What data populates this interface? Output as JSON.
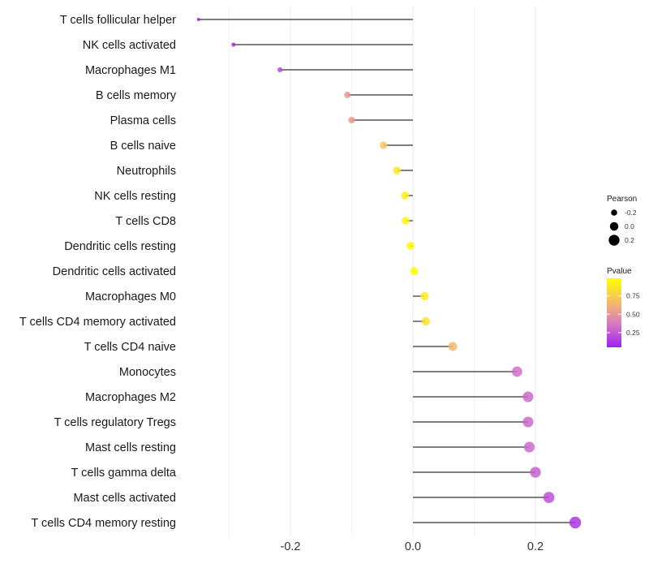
{
  "chart_data": {
    "type": "lollipop",
    "categories": [
      "T cells follicular helper",
      "NK cells activated",
      "Macrophages M1",
      "B cells memory",
      "Plasma cells",
      "B cells naive",
      "Neutrophils",
      "NK cells resting",
      "T cells CD8",
      "Dendritic cells resting",
      "Dendritic cells activated",
      "Macrophages M0",
      "T cells CD4 memory activated",
      "T cells CD4 naive",
      "Monocytes",
      "Macrophages M2",
      "T cells regulatory  Tregs ",
      "Mast cells resting",
      "T cells gamma delta",
      "Mast cells activated",
      "T cells CD4 memory resting"
    ],
    "pearson": [
      -0.35,
      -0.293,
      -0.217,
      -0.107,
      -0.1,
      -0.048,
      -0.026,
      -0.013,
      -0.012,
      -0.004,
      0.002,
      0.019,
      0.021,
      0.065,
      0.17,
      0.188,
      0.188,
      0.19,
      0.2,
      0.222,
      0.265
    ],
    "pvalue": [
      0.05,
      0.07,
      0.18,
      0.5,
      0.52,
      0.8,
      0.92,
      0.95,
      0.96,
      0.98,
      0.99,
      0.93,
      0.9,
      0.7,
      0.3,
      0.28,
      0.28,
      0.28,
      0.25,
      0.2,
      0.12
    ],
    "x_ticks": [
      "-0.2",
      "0.0",
      "0.2"
    ],
    "x_tick_values": [
      -0.2,
      0.0,
      0.2
    ],
    "xlim": [
      -0.365,
      0.285
    ],
    "legend_size": {
      "title": "Pearson",
      "labels": [
        "-0.2",
        "0.0",
        "0.2"
      ],
      "values": [
        -0.2,
        0.0,
        0.2
      ]
    },
    "legend_color": {
      "title": "Pvalue",
      "labels": [
        "0.75",
        "0.50",
        "0.25"
      ],
      "values": [
        0.75,
        0.5,
        0.25
      ],
      "range": [
        0.05,
        0.99
      ]
    },
    "colors": {
      "low": "#a020f0",
      "high": "#ffff00",
      "segment": "#333333",
      "grid": "#ebebeb"
    }
  }
}
